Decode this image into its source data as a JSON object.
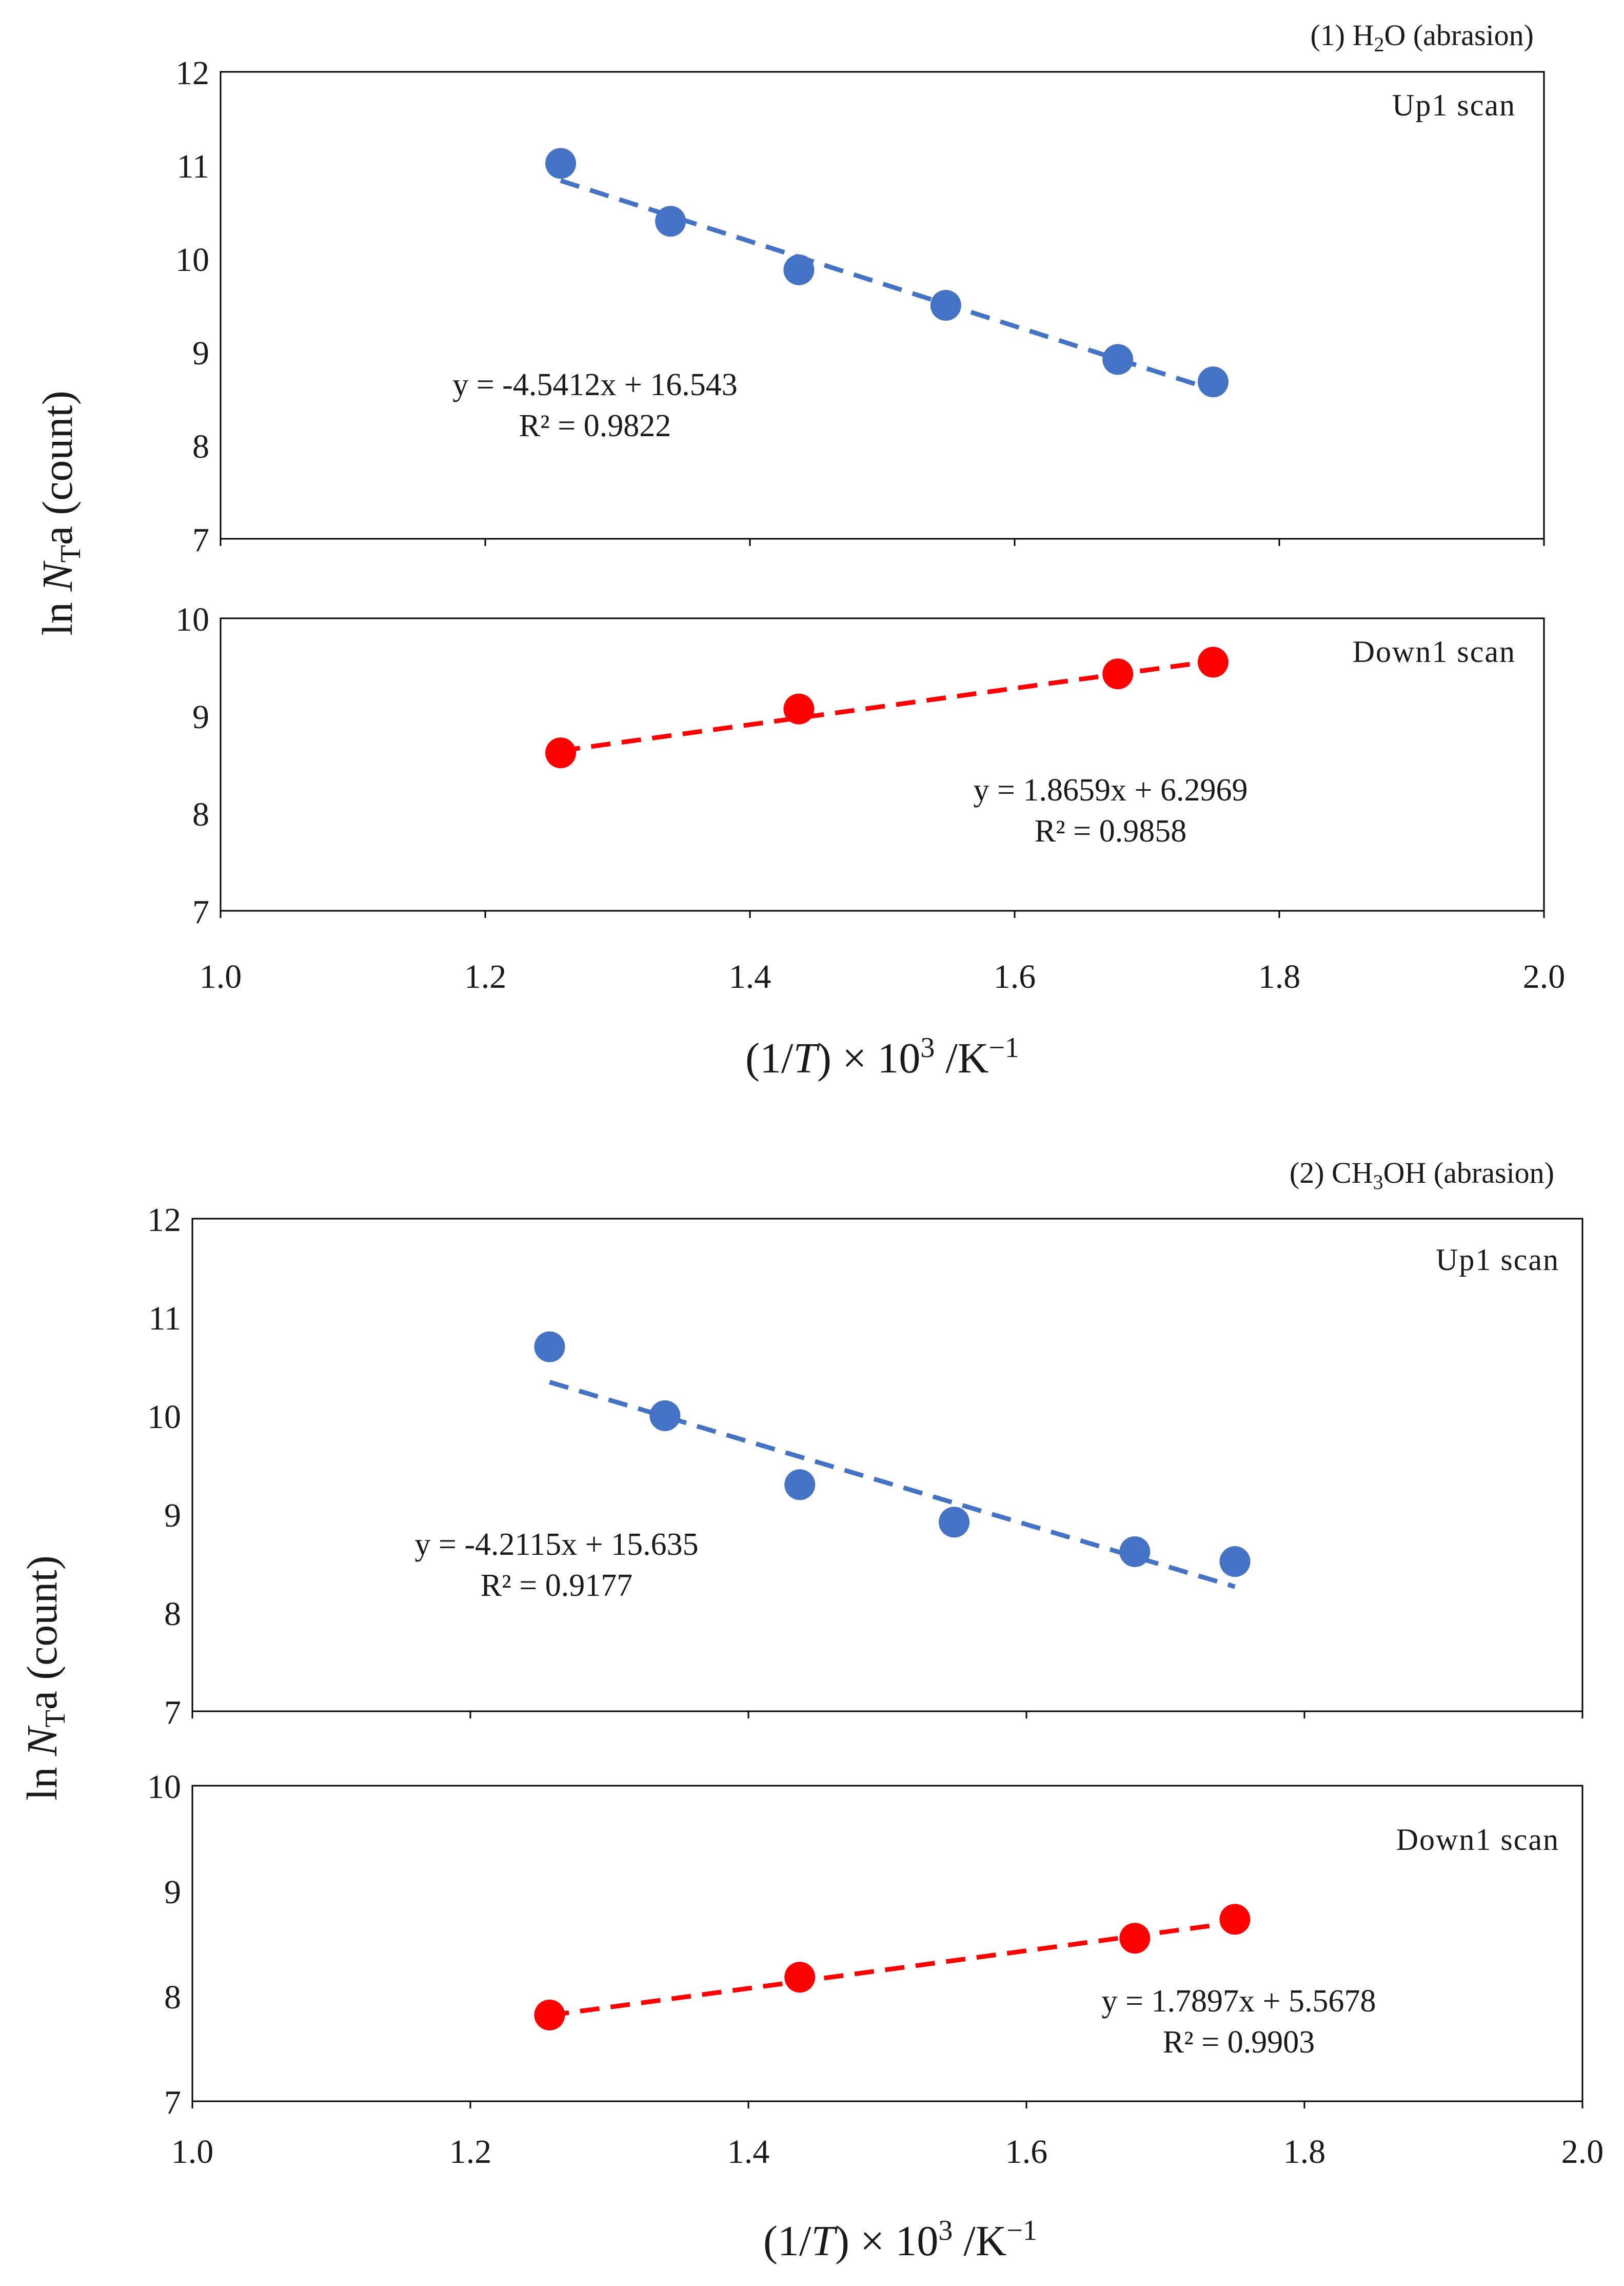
{
  "chart_data": [
    {
      "type": "scatter",
      "title": "(1) H₂O (abrasion)",
      "title_parts": {
        "prefix": "(1) H",
        "sub": "2",
        "suffix": "O (abrasion)"
      },
      "ylabel": {
        "prefix": "ln ",
        "italic": "N",
        "sub": "T",
        "suffix": "a (count)"
      },
      "xlabel": {
        "open": "(1/",
        "italic": "T",
        "close": ") × 10",
        "sup1": "3",
        "mid": " /K",
        "sup2": "−1"
      },
      "xlim": [
        1.0,
        2.0
      ],
      "xticks": [
        "1.0",
        "1.2",
        "1.4",
        "1.6",
        "1.8",
        "2.0"
      ],
      "xtick_values": [
        1.0,
        1.2,
        1.4,
        1.6,
        1.8,
        2.0
      ],
      "subplots": [
        {
          "scan_label": "Up1 scan",
          "ylim": [
            7,
            12
          ],
          "yticks": [
            "7",
            "8",
            "9",
            "10",
            "11",
            "12"
          ],
          "ytick_values": [
            7,
            8,
            9,
            10,
            11,
            12
          ],
          "color": "#4472C4",
          "points": {
            "x": [
              1.257,
              1.34,
              1.437,
              1.548,
              1.678,
              1.75
            ],
            "y": [
              11.02,
              10.4,
              9.88,
              9.5,
              8.92,
              8.68
            ]
          },
          "trend": {
            "slope": -4.5412,
            "intercept": 16.543,
            "x_range": [
              1.257,
              1.75
            ]
          },
          "equation": "y = -4.5412x + 16.543",
          "r2": "R² = 0.9822"
        },
        {
          "scan_label": "Down1 scan",
          "ylim": [
            7,
            10
          ],
          "yticks": [
            "7",
            "8",
            "9",
            "10"
          ],
          "ytick_values": [
            7,
            8,
            9,
            10
          ],
          "color": "#FF0000",
          "points": {
            "x": [
              1.257,
              1.437,
              1.678,
              1.75
            ],
            "y": [
              8.62,
              9.07,
              9.43,
              9.55
            ]
          },
          "trend": {
            "slope": 1.8659,
            "intercept": 6.2969,
            "x_range": [
              1.257,
              1.75
            ]
          },
          "equation": "y = 1.8659x + 6.2969",
          "r2": "R² = 0.9858"
        }
      ]
    },
    {
      "type": "scatter",
      "title": "(2) CH₃OH (abrasion)",
      "title_parts": {
        "prefix": "(2) CH",
        "sub": "3",
        "suffix": "OH (abrasion)"
      },
      "ylabel": {
        "prefix": "ln ",
        "italic": "N",
        "sub": "T",
        "suffix": "a (count)"
      },
      "xlabel": {
        "open": "(1/",
        "italic": "T",
        "close": ") × 10",
        "sup1": "3",
        "mid": " /K",
        "sup2": "−1"
      },
      "xlim": [
        1.0,
        2.0
      ],
      "xticks": [
        "1.0",
        "1.2",
        "1.4",
        "1.6",
        "1.8",
        "2.0"
      ],
      "xtick_values": [
        1.0,
        1.2,
        1.4,
        1.6,
        1.8,
        2.0
      ],
      "subplots": [
        {
          "scan_label": "Up1 scan",
          "ylim": [
            7,
            12
          ],
          "yticks": [
            "7",
            "8",
            "9",
            "10",
            "11",
            "12"
          ],
          "ytick_values": [
            7,
            8,
            9,
            10,
            11,
            12
          ],
          "color": "#4472C4",
          "points": {
            "x": [
              1.257,
              1.34,
              1.437,
              1.548,
              1.678,
              1.75
            ],
            "y": [
              10.7,
              10.0,
              9.3,
              8.92,
              8.62,
              8.52
            ]
          },
          "trend": {
            "slope": -4.2115,
            "intercept": 15.635,
            "x_range": [
              1.257,
              1.75
            ]
          },
          "equation": "y = -4.2115x + 15.635",
          "r2": "R² = 0.9177"
        },
        {
          "scan_label": "Down1 scan",
          "ylim": [
            7,
            10
          ],
          "yticks": [
            "7",
            "8",
            "9",
            "10"
          ],
          "ytick_values": [
            7,
            8,
            9,
            10
          ],
          "color": "#FF0000",
          "points": {
            "x": [
              1.257,
              1.437,
              1.678,
              1.75
            ],
            "y": [
              7.82,
              8.18,
              8.55,
              8.73
            ]
          },
          "trend": {
            "slope": 1.7897,
            "intercept": 5.5678,
            "x_range": [
              1.257,
              1.75
            ]
          },
          "equation": "y = 1.7897x + 5.5678",
          "r2": "R² = 0.9903"
        }
      ]
    }
  ]
}
